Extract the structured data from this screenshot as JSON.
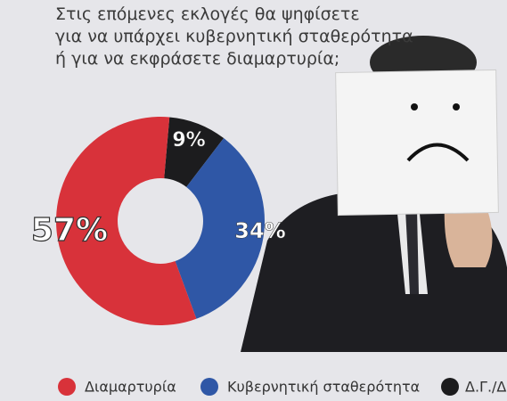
{
  "chart_data": {
    "type": "donut",
    "title": [
      "Στις επόμενες εκλογές θα ψηφίσετε",
      "για να υπάρχει κυβερνητική σταθερότητα",
      "ή για να εκφράσετε διαμαρτυρία;"
    ],
    "categories": [
      "Διαμαρτυρία",
      "Κυβερνητική σταθερότητα",
      "Δ.Γ./Δ"
    ],
    "values": [
      57,
      34,
      9
    ],
    "value_labels": [
      "57%",
      "34%",
      "9%"
    ],
    "colors": [
      "#d8323a",
      "#2f57a6",
      "#1c1c1e"
    ]
  }
}
